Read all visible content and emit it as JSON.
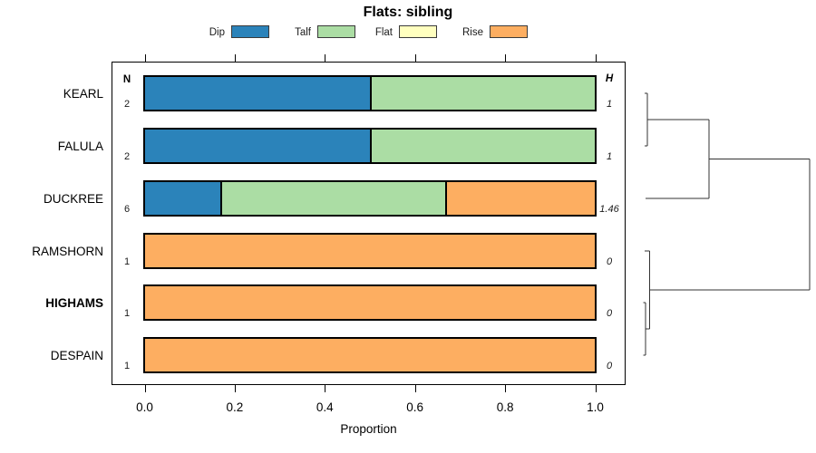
{
  "chart_data": {
    "type": "bar",
    "variant": "stacked-horizontal-proportion-with-dendrogram",
    "title": "Flats: sibling",
    "xlabel": "Proportion",
    "xlim": [
      0,
      1
    ],
    "grid": false,
    "legend_position": "top",
    "xticks": [
      {
        "value": 0.0,
        "label": "0.0"
      },
      {
        "value": 0.2,
        "label": "0.2"
      },
      {
        "value": 0.4,
        "label": "0.4"
      },
      {
        "value": 0.6,
        "label": "0.6"
      },
      {
        "value": 0.8,
        "label": "0.8"
      },
      {
        "value": 1.0,
        "label": "1.0"
      }
    ],
    "columns": {
      "left_header": "N",
      "right_header": "H"
    },
    "legend": [
      {
        "label": "Dip",
        "color": "#2B83BA"
      },
      {
        "label": "Talf",
        "color": "#ABDDA4"
      },
      {
        "label": "Flat",
        "color": "#FFFFBF"
      },
      {
        "label": "Rise",
        "color": "#FDAE61"
      }
    ],
    "rows": [
      {
        "label": "KEARL",
        "bold": false,
        "n": "2",
        "h": "1",
        "segments": [
          {
            "category": "Dip",
            "value": 0.5
          },
          {
            "category": "Talf",
            "value": 0.5
          }
        ]
      },
      {
        "label": "FALULA",
        "bold": false,
        "n": "2",
        "h": "1",
        "segments": [
          {
            "category": "Dip",
            "value": 0.5
          },
          {
            "category": "Talf",
            "value": 0.5
          }
        ]
      },
      {
        "label": "DUCKREE",
        "bold": false,
        "n": "6",
        "h": "1.46",
        "segments": [
          {
            "category": "Dip",
            "value": 0.1667
          },
          {
            "category": "Talf",
            "value": 0.5
          },
          {
            "category": "Rise",
            "value": 0.3333
          }
        ]
      },
      {
        "label": "RAMSHORN",
        "bold": false,
        "n": "1",
        "h": "0",
        "segments": [
          {
            "category": "Rise",
            "value": 1.0
          }
        ]
      },
      {
        "label": "HIGHAMS",
        "bold": true,
        "n": "1",
        "h": "0",
        "segments": [
          {
            "category": "Rise",
            "value": 1.0
          }
        ]
      },
      {
        "label": "DESPAIN",
        "bold": false,
        "n": "1",
        "h": "0",
        "segments": [
          {
            "category": "Rise",
            "value": 1.0
          }
        ]
      }
    ],
    "dendrogram": {
      "structure": "((KEARL,FALULA),DUCKREE) joined to (RAMSHORN,(HIGHAMS,DESPAIN)) at root",
      "segments": [
        [
          711,
          103,
          714,
          103
        ],
        [
          714,
          103,
          714,
          161
        ],
        [
          711,
          161,
          714,
          161
        ],
        [
          714,
          132,
          782,
          132
        ],
        [
          712,
          219,
          782,
          219
        ],
        [
          782,
          132,
          782,
          219
        ],
        [
          782,
          175.5,
          893,
          175.5
        ],
        [
          711,
          277,
          716.5,
          277
        ],
        [
          716.5,
          277,
          716.5,
          363
        ],
        [
          712,
          363,
          716.5,
          363
        ],
        [
          709.5,
          334,
          712,
          334
        ],
        [
          712,
          334,
          712,
          392
        ],
        [
          709.5,
          392,
          712,
          392
        ],
        [
          716.5,
          320,
          893,
          320
        ],
        [
          893,
          175.5,
          893,
          320
        ]
      ]
    }
  }
}
